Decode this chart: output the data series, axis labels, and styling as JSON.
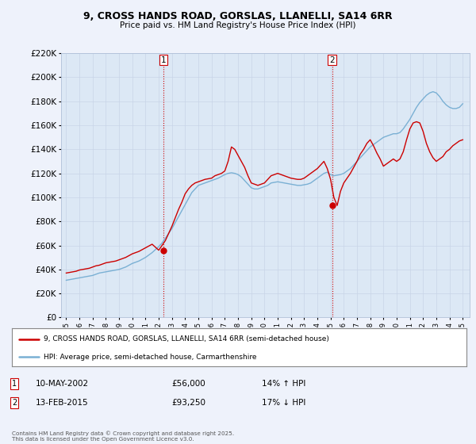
{
  "title1": "9, CROSS HANDS ROAD, GORSLAS, LLANELLI, SA14 6RR",
  "title2": "Price paid vs. HM Land Registry's House Price Index (HPI)",
  "legend_property": "9, CROSS HANDS ROAD, GORSLAS, LLANELLI, SA14 6RR (semi-detached house)",
  "legend_hpi": "HPI: Average price, semi-detached house, Carmarthenshire",
  "purchase1_year": 2002.37,
  "purchase1_price": 56000,
  "purchase1_text": "10-MAY-2002",
  "purchase1_price_text": "£56,000",
  "purchase1_hpi_text": "14% ↑ HPI",
  "purchase2_year": 2015.12,
  "purchase2_price": 93250,
  "purchase2_text": "13-FEB-2015",
  "purchase2_price_text": "£93,250",
  "purchase2_hpi_text": "17% ↓ HPI",
  "property_color": "#cc0000",
  "hpi_color": "#7ab0d4",
  "vline_color": "#cc0000",
  "background_color": "#eef2fb",
  "plot_bg": "#dce8f5",
  "ylim_min": 0,
  "ylim_max": 220000,
  "ytick_step": 20000,
  "footer": "Contains HM Land Registry data © Crown copyright and database right 2025.\nThis data is licensed under the Open Government Licence v3.0.",
  "hpi_years": [
    1995,
    1995.25,
    1995.5,
    1995.75,
    1996,
    1996.25,
    1996.5,
    1996.75,
    1997,
    1997.25,
    1997.5,
    1997.75,
    1998,
    1998.25,
    1998.5,
    1998.75,
    1999,
    1999.25,
    1999.5,
    1999.75,
    2000,
    2000.25,
    2000.5,
    2000.75,
    2001,
    2001.25,
    2001.5,
    2001.75,
    2002,
    2002.25,
    2002.5,
    2002.75,
    2003,
    2003.25,
    2003.5,
    2003.75,
    2004,
    2004.25,
    2004.5,
    2004.75,
    2005,
    2005.25,
    2005.5,
    2005.75,
    2006,
    2006.25,
    2006.5,
    2006.75,
    2007,
    2007.25,
    2007.5,
    2007.75,
    2008,
    2008.25,
    2008.5,
    2008.75,
    2009,
    2009.25,
    2009.5,
    2009.75,
    2010,
    2010.25,
    2010.5,
    2010.75,
    2011,
    2011.25,
    2011.5,
    2011.75,
    2012,
    2012.25,
    2012.5,
    2012.75,
    2013,
    2013.25,
    2013.5,
    2013.75,
    2014,
    2014.25,
    2014.5,
    2014.75,
    2015,
    2015.25,
    2015.5,
    2015.75,
    2016,
    2016.25,
    2016.5,
    2016.75,
    2017,
    2017.25,
    2017.5,
    2017.75,
    2018,
    2018.25,
    2018.5,
    2018.75,
    2019,
    2019.25,
    2019.5,
    2019.75,
    2020,
    2020.25,
    2020.5,
    2020.75,
    2021,
    2021.25,
    2021.5,
    2021.75,
    2022,
    2022.25,
    2022.5,
    2022.75,
    2023,
    2023.25,
    2023.5,
    2023.75,
    2024,
    2024.25,
    2024.5,
    2024.75,
    2025
  ],
  "hpi_values": [
    31000,
    31500,
    32000,
    32500,
    33000,
    33500,
    34000,
    34500,
    35000,
    36000,
    37000,
    37500,
    38000,
    38500,
    39000,
    39500,
    40000,
    41000,
    42000,
    43500,
    45000,
    46000,
    47000,
    48500,
    50000,
    52000,
    54000,
    56500,
    59000,
    62000,
    66000,
    70000,
    74000,
    79000,
    84000,
    89000,
    94000,
    99000,
    104000,
    107000,
    110000,
    111000,
    112000,
    113000,
    114000,
    115000,
    116000,
    117500,
    119000,
    120000,
    120500,
    120000,
    119000,
    117000,
    114000,
    111000,
    108000,
    107000,
    107000,
    108000,
    109000,
    110000,
    112000,
    112500,
    113000,
    112500,
    112000,
    111500,
    111000,
    110500,
    110000,
    110000,
    110500,
    111000,
    112000,
    114000,
    116000,
    118000,
    120000,
    121000,
    119000,
    118000,
    118500,
    119000,
    120000,
    122000,
    124000,
    127000,
    130000,
    133000,
    136000,
    139000,
    142000,
    144000,
    146000,
    148000,
    150000,
    151000,
    152000,
    153000,
    153000,
    154000,
    157000,
    161000,
    165000,
    170000,
    175000,
    179000,
    182000,
    185000,
    187000,
    188000,
    187000,
    184000,
    180000,
    177000,
    175000,
    174000,
    174000,
    175000,
    178000
  ],
  "property_years": [
    1995,
    1995.25,
    1995.5,
    1995.75,
    1996,
    1996.25,
    1996.5,
    1996.75,
    1997,
    1997.25,
    1997.5,
    1997.75,
    1998,
    1998.25,
    1998.5,
    1998.75,
    1999,
    1999.25,
    1999.5,
    1999.75,
    2000,
    2000.25,
    2000.5,
    2000.75,
    2001,
    2001.25,
    2001.5,
    2001.75,
    2002,
    2002.25,
    2002.5,
    2002.75,
    2003,
    2003.25,
    2003.5,
    2003.75,
    2004,
    2004.25,
    2004.5,
    2004.75,
    2005,
    2005.25,
    2005.5,
    2005.75,
    2006,
    2006.25,
    2006.5,
    2006.75,
    2007,
    2007.25,
    2007.5,
    2007.75,
    2008,
    2008.25,
    2008.5,
    2008.75,
    2009,
    2009.25,
    2009.5,
    2009.75,
    2010,
    2010.25,
    2010.5,
    2010.75,
    2011,
    2011.25,
    2011.5,
    2011.75,
    2012,
    2012.25,
    2012.5,
    2012.75,
    2013,
    2013.25,
    2013.5,
    2013.75,
    2014,
    2014.25,
    2014.5,
    2014.75,
    2015,
    2015.25,
    2015.5,
    2015.75,
    2016,
    2016.25,
    2016.5,
    2016.75,
    2017,
    2017.25,
    2017.5,
    2017.75,
    2018,
    2018.25,
    2018.5,
    2018.75,
    2019,
    2019.25,
    2019.5,
    2019.75,
    2020,
    2020.25,
    2020.5,
    2020.75,
    2021,
    2021.25,
    2021.5,
    2021.75,
    2022,
    2022.25,
    2022.5,
    2022.75,
    2023,
    2023.25,
    2023.5,
    2023.75,
    2024,
    2024.25,
    2024.5,
    2024.75,
    2025
  ],
  "property_values": [
    37000,
    37500,
    38000,
    38500,
    39500,
    40000,
    40500,
    41000,
    42000,
    43000,
    43500,
    44500,
    45500,
    46000,
    46500,
    47000,
    48000,
    49000,
    50000,
    51500,
    53000,
    54000,
    55000,
    56500,
    58000,
    59500,
    61000,
    58500,
    56000,
    60000,
    64000,
    70000,
    76000,
    83000,
    90000,
    96000,
    103000,
    107000,
    110000,
    112000,
    113000,
    114000,
    115000,
    115500,
    116000,
    118000,
    119000,
    120000,
    122000,
    130000,
    142000,
    140000,
    135000,
    130000,
    125000,
    118000,
    112000,
    111000,
    110000,
    111000,
    112000,
    115000,
    118000,
    119000,
    120000,
    119000,
    118000,
    117000,
    116000,
    115500,
    115000,
    115000,
    116000,
    118000,
    120000,
    122000,
    124000,
    127000,
    130000,
    124000,
    115000,
    100000,
    93250,
    105000,
    112000,
    116000,
    120000,
    125000,
    130000,
    136000,
    140000,
    145000,
    148000,
    143000,
    137000,
    132000,
    126000,
    128000,
    130000,
    132000,
    130000,
    132000,
    138000,
    148000,
    157000,
    162000,
    163000,
    162000,
    155000,
    145000,
    138000,
    133000,
    130000,
    132000,
    134000,
    138000,
    140000,
    143000,
    145000,
    147000,
    148000
  ]
}
